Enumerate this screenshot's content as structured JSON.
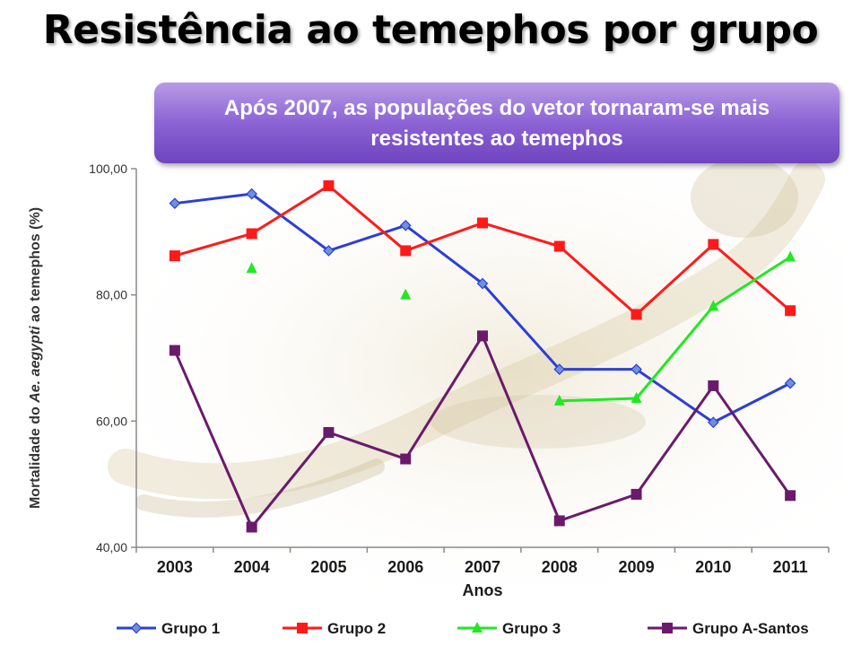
{
  "page": {
    "title": "Resistência ao temephos por grupo",
    "callout": "Após 2007, as populações do vetor tornaram-se mais resistentes ao temephos"
  },
  "chart_data": {
    "type": "line",
    "categories": [
      "2003",
      "2004",
      "2005",
      "2006",
      "2007",
      "2008",
      "2009",
      "2010",
      "2011"
    ],
    "ylabel_parts": [
      "Mortalidade do ",
      "Ae. aegypti",
      " ao temephos (%)"
    ],
    "xlabel": "Anos",
    "ylim": [
      40,
      100
    ],
    "y_ticks": [
      {
        "value": 40,
        "label": "40,00"
      },
      {
        "value": 60,
        "label": "60,00"
      },
      {
        "value": 80,
        "label": "80,00"
      },
      {
        "value": 100,
        "label": "100,00"
      }
    ],
    "grid": false,
    "legend_position": "bottom",
    "series": [
      {
        "name": "Grupo 1",
        "color": "#2b3fd6",
        "marker": "diamond",
        "values": [
          94.5,
          96.0,
          87.0,
          91.0,
          81.8,
          68.2,
          68.2,
          59.8,
          66.0
        ]
      },
      {
        "name": "Grupo 2",
        "color": "#ff1a1a",
        "marker": "square",
        "values": [
          86.2,
          89.7,
          97.3,
          87.0,
          91.4,
          87.7,
          76.9,
          88.0,
          77.5
        ]
      },
      {
        "name": "Grupo 3",
        "color": "#22e822",
        "marker": "triangle",
        "values": [
          null,
          84.2,
          null,
          80.0,
          null,
          63.2,
          63.6,
          78.2,
          86.0
        ]
      },
      {
        "name": "Grupo A-Santos",
        "color": "#6b1a6b",
        "marker": "square",
        "values": [
          71.2,
          43.2,
          58.2,
          54.0,
          73.5,
          44.2,
          48.4,
          65.6,
          48.2
        ]
      }
    ]
  }
}
